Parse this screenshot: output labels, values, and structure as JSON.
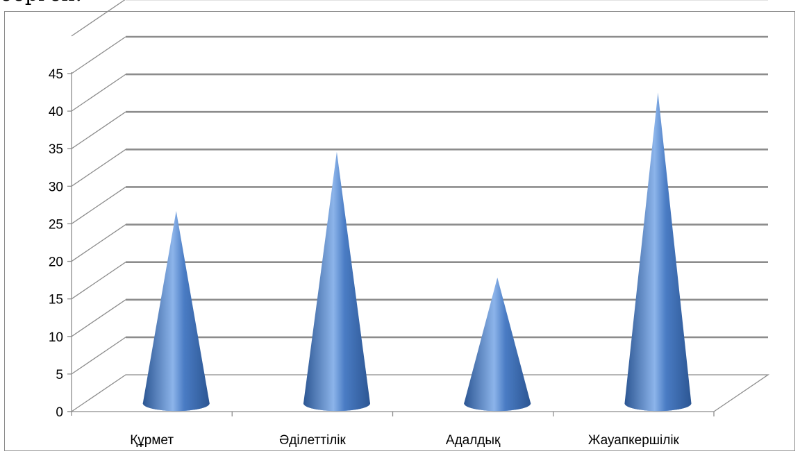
{
  "page": {
    "above_text": "берген."
  },
  "chart_data": {
    "type": "bar",
    "style": "3d-cone",
    "categories": [
      "Құрмет",
      "Әділеттілік",
      "Адалдық",
      "Жауапкершілік"
    ],
    "values": [
      26,
      34,
      17,
      42
    ],
    "ylim": [
      0,
      45
    ],
    "yticks": [
      "0",
      "5",
      "10",
      "15",
      "20",
      "25",
      "30",
      "35",
      "40",
      "45"
    ],
    "title": "",
    "xlabel": "",
    "ylabel": "",
    "grid": true,
    "legend": "none",
    "colors": {
      "cone_dark": "#2c5693",
      "cone_mid": "#4a7cc4",
      "cone_light": "#8cb4ea",
      "gridline": "#8c8c8c"
    }
  }
}
